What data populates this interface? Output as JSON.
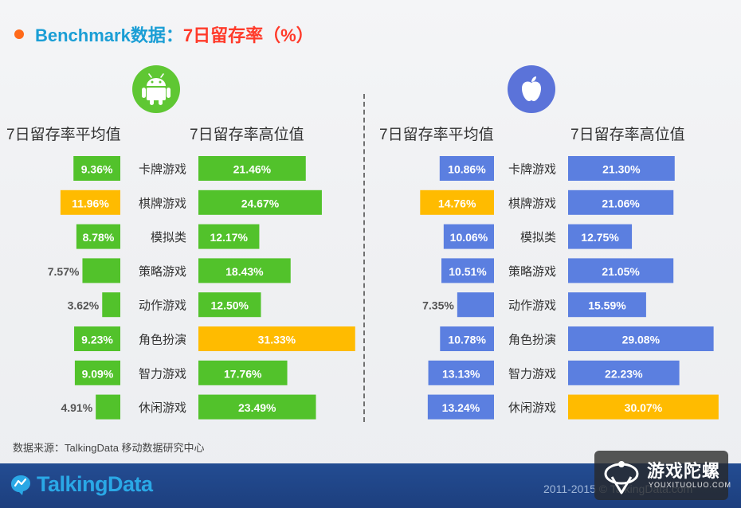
{
  "header": {
    "title_prefix": "Benchmark数据：",
    "title_suffix": "7日留存率（%）"
  },
  "colors": {
    "android_bar": "#52c22b",
    "ios_bar": "#5b7fe0",
    "highlight_bar": "#ffbb00",
    "accent_dot": "#ff6a1a",
    "footer_bg": "#1f4486"
  },
  "icons": {
    "android": "android-logo-icon",
    "ios": "apple-logo-icon"
  },
  "chart_data": [
    {
      "type": "bar",
      "platform_icon": "android-logo-icon",
      "categories": [
        "卡牌游戏",
        "棋牌游戏",
        "模拟类",
        "策略游戏",
        "动作游戏",
        "角色扮演",
        "智力游戏",
        "休闲游戏"
      ],
      "series": [
        {
          "name": "7日留存率平均值",
          "values": [
            9.36,
            11.96,
            8.78,
            7.57,
            3.62,
            9.23,
            9.09,
            4.91
          ],
          "highlight_index": 1
        },
        {
          "name": "7日留存率高位值",
          "values": [
            21.46,
            24.67,
            12.17,
            18.43,
            12.5,
            31.33,
            17.76,
            23.49
          ],
          "highlight_index": 5
        }
      ]
    },
    {
      "type": "bar",
      "platform_icon": "apple-logo-icon",
      "categories": [
        "卡牌游戏",
        "棋牌游戏",
        "模拟类",
        "策略游戏",
        "动作游戏",
        "角色扮演",
        "智力游戏",
        "休闲游戏"
      ],
      "series": [
        {
          "name": "7日留存率平均值",
          "values": [
            10.86,
            14.76,
            10.06,
            10.51,
            7.35,
            10.78,
            13.13,
            13.24
          ],
          "highlight_index": 1
        },
        {
          "name": "7日留存率高位值",
          "values": [
            21.3,
            21.06,
            12.75,
            21.05,
            15.59,
            29.08,
            22.23,
            30.07
          ],
          "highlight_index": 7
        }
      ]
    }
  ],
  "source": "数据来源：TalkingData 移动数据研究中心",
  "footer": {
    "brand": "TalkingData",
    "copyright": "2011-2015 © TalkingData.com"
  },
  "watermark": {
    "name": "游戏陀螺",
    "url": "YOUXITUOLUO.COM"
  }
}
